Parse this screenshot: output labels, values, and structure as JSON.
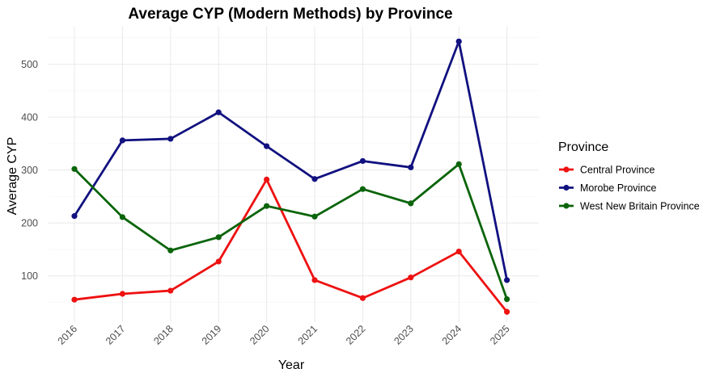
{
  "chart_data": {
    "type": "line",
    "title": "Average CYP (Modern Methods) by Province",
    "xlabel": "Year",
    "ylabel": "Average CYP",
    "x": [
      "2016",
      "2017",
      "2018",
      "2019",
      "2020",
      "2021",
      "2022",
      "2023",
      "2024",
      "2025"
    ],
    "yticks": [
      "100",
      "200",
      "300",
      "400",
      "500"
    ],
    "ylim": [
      15,
      560
    ],
    "grid": true,
    "legend": {
      "title": "Province",
      "placement": "right"
    },
    "series": [
      {
        "name": "Central Province",
        "color": "#ee1111",
        "values": [
          55,
          66,
          72,
          127,
          282,
          92,
          58,
          97,
          146,
          32
        ]
      },
      {
        "name": "Morobe Province",
        "color": "#111180",
        "values": [
          213,
          356,
          359,
          409,
          345,
          283,
          317,
          305,
          543,
          92
        ]
      },
      {
        "name": "West New Britain Province",
        "color": "#0a640a",
        "values": [
          302,
          211,
          148,
          173,
          232,
          212,
          264,
          237,
          311,
          56
        ]
      }
    ]
  }
}
